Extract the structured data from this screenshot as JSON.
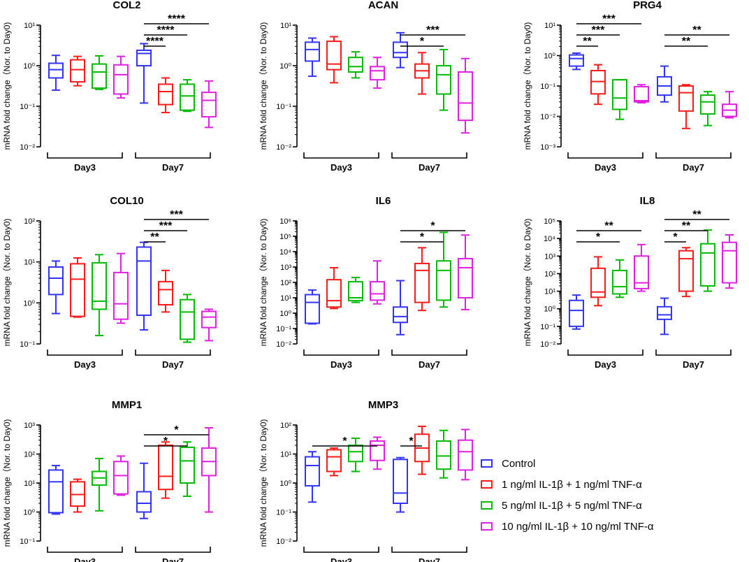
{
  "figure": {
    "legend": [
      {
        "label": "Control",
        "color": "#3333ff"
      },
      {
        "label": "1 ng/ml IL-1β + 1 ng/ml TNF-α",
        "color": "#ff1a1a"
      },
      {
        "label": "5 ng/ml IL-1β + 5 ng/ml TNF-α",
        "color": "#00bb00"
      },
      {
        "label": "10 ng/ml IL-1β + 10 ng/ml TNF-α",
        "color": "#e020e0"
      }
    ]
  },
  "chart_data": [
    {
      "type": "box",
      "title": "COL2",
      "ylabel": "mRNA fold change（Nor. to Day0)",
      "yscale": "log",
      "ylim_exp": [
        -2,
        1
      ],
      "groups": [
        "Day3",
        "Day7"
      ],
      "series": [
        "Control",
        "1 ng/ml IL-1β + 1 ng/ml TNF-α",
        "5 ng/ml IL-1β + 5 ng/ml TNF-α",
        "10 ng/ml IL-1β + 10 ng/ml TNF-α"
      ],
      "boxes": [
        [
          [
            0.25,
            0.5,
            0.8,
            1.15,
            1.8
          ],
          [
            0.32,
            0.4,
            0.8,
            1.4,
            1.7
          ],
          [
            0.26,
            0.28,
            0.7,
            1.1,
            1.75
          ],
          [
            0.16,
            0.2,
            0.6,
            1.05,
            1.7
          ]
        ],
        [
          [
            0.12,
            1.0,
            2.0,
            2.4,
            3.5
          ],
          [
            0.07,
            0.11,
            0.23,
            0.35,
            0.5
          ],
          [
            0.075,
            0.08,
            0.18,
            0.35,
            0.45
          ],
          [
            0.03,
            0.055,
            0.14,
            0.22,
            0.42
          ]
        ]
      ],
      "sig": [
        {
          "from": [
            1,
            0
          ],
          "to": [
            1,
            1
          ],
          "label": "****"
        },
        {
          "from": [
            1,
            0
          ],
          "to": [
            1,
            2
          ],
          "label": "****"
        },
        {
          "from": [
            1,
            0
          ],
          "to": [
            1,
            3
          ],
          "label": "****"
        }
      ]
    },
    {
      "type": "box",
      "title": "ACAN",
      "ylabel": "mRNA fold change（Nor. to Day0)",
      "yscale": "log",
      "ylim_exp": [
        -2,
        1
      ],
      "groups": [
        "Day3",
        "Day7"
      ],
      "series": [
        "Control",
        "1 ng/ml IL-1β + 1 ng/ml TNF-α",
        "5 ng/ml IL-1β + 5 ng/ml TNF-α",
        "10 ng/ml IL-1β + 10 ng/ml TNF-α"
      ],
      "boxes": [
        [
          [
            0.55,
            1.3,
            2.5,
            3.8,
            4.8
          ],
          [
            0.38,
            0.8,
            1.1,
            4.0,
            5.2
          ],
          [
            0.5,
            0.7,
            0.95,
            1.6,
            2.2
          ],
          [
            0.28,
            0.45,
            0.75,
            0.95,
            1.6
          ]
        ],
        [
          [
            0.9,
            1.6,
            2.1,
            3.8,
            6.5
          ],
          [
            0.2,
            0.5,
            0.75,
            1.1,
            2.1
          ],
          [
            0.08,
            0.2,
            0.6,
            1.0,
            2.5
          ],
          [
            0.022,
            0.045,
            0.12,
            0.7,
            1.5
          ]
        ]
      ],
      "sig": [
        {
          "from": [
            1,
            0
          ],
          "to": [
            1,
            2
          ],
          "label": "*"
        },
        {
          "from": [
            1,
            0
          ],
          "to": [
            1,
            3
          ],
          "label": "***"
        }
      ]
    },
    {
      "type": "box",
      "title": "PRG4",
      "ylabel": "mRNA fold change（Nor. to Day0)",
      "yscale": "log",
      "ylim_exp": [
        -3,
        1
      ],
      "groups": [
        "Day3",
        "Day7"
      ],
      "series": [
        "Control",
        "1 ng/ml IL-1β + 1 ng/ml TNF-α",
        "5 ng/ml IL-1β + 5 ng/ml TNF-α",
        "10 ng/ml IL-1β + 10 ng/ml TNF-α"
      ],
      "boxes": [
        [
          [
            0.35,
            0.45,
            0.8,
            1.05,
            1.2
          ],
          [
            0.025,
            0.055,
            0.14,
            0.32,
            0.5
          ],
          [
            0.008,
            0.017,
            0.04,
            0.16,
            0.16
          ],
          [
            0.028,
            0.03,
            0.033,
            0.095,
            0.11
          ]
        ],
        [
          [
            0.03,
            0.05,
            0.1,
            0.2,
            0.45
          ],
          [
            0.004,
            0.015,
            0.06,
            0.1,
            0.11
          ],
          [
            0.005,
            0.012,
            0.03,
            0.05,
            0.065
          ],
          [
            0.009,
            0.01,
            0.016,
            0.025,
            0.065
          ]
        ]
      ],
      "sig": [
        {
          "from": [
            0,
            0
          ],
          "to": [
            0,
            1
          ],
          "label": "**"
        },
        {
          "from": [
            0,
            0
          ],
          "to": [
            0,
            2
          ],
          "label": "***"
        },
        {
          "from": [
            0,
            0
          ],
          "to": [
            0,
            3
          ],
          "label": "***"
        },
        {
          "from": [
            1,
            0
          ],
          "to": [
            1,
            2
          ],
          "label": "**"
        },
        {
          "from": [
            1,
            0
          ],
          "to": [
            1,
            3
          ],
          "label": "**"
        }
      ]
    },
    {
      "type": "box",
      "title": "COL10",
      "ylabel": "mRNA fold change（Nor. to Day0)",
      "yscale": "log",
      "ylim_exp": [
        -1,
        2
      ],
      "groups": [
        "Day3",
        "Day7"
      ],
      "series": [
        "Control",
        "1 ng/ml IL-1β + 1 ng/ml TNF-α",
        "5 ng/ml IL-1β + 5 ng/ml TNF-α",
        "10 ng/ml IL-1β + 10 ng/ml TNF-α"
      ],
      "boxes": [
        [
          [
            0.55,
            1.6,
            4.0,
            7.5,
            10.5
          ],
          [
            0.45,
            0.47,
            3.8,
            9.0,
            12.5
          ],
          [
            0.16,
            0.7,
            1.1,
            9.5,
            15.0
          ],
          [
            0.32,
            0.4,
            0.95,
            5.5,
            16.0
          ]
        ],
        [
          [
            0.22,
            0.5,
            10.5,
            23.0,
            30.0
          ],
          [
            0.6,
            0.9,
            2.1,
            3.3,
            6.2
          ],
          [
            0.11,
            0.13,
            0.6,
            1.2,
            1.6
          ],
          [
            0.12,
            0.25,
            0.45,
            0.62,
            0.7
          ]
        ]
      ],
      "sig": [
        {
          "from": [
            1,
            0
          ],
          "to": [
            1,
            1
          ],
          "label": "**"
        },
        {
          "from": [
            1,
            0
          ],
          "to": [
            1,
            2
          ],
          "label": "***"
        },
        {
          "from": [
            1,
            0
          ],
          "to": [
            1,
            3
          ],
          "label": "***"
        }
      ]
    },
    {
      "type": "box",
      "title": "IL6",
      "ylabel": "mRNA fold change（Nor. to Day0)",
      "yscale": "log",
      "ylim_exp": [
        -2,
        6
      ],
      "groups": [
        "Day3",
        "Day7"
      ],
      "series": [
        "Control",
        "1 ng/ml IL-1β + 1 ng/ml TNF-α",
        "5 ng/ml IL-1β + 5 ng/ml TNF-α",
        "10 ng/ml IL-1β + 10 ng/ml TNF-α"
      ],
      "boxes": [
        [
          [
            0.2,
            0.22,
            5.0,
            16.0,
            32.0
          ],
          [
            2.0,
            2.5,
            6.5,
            150.0,
            900.0
          ],
          [
            5.0,
            6.5,
            10.0,
            110.0,
            210.0
          ],
          [
            4.0,
            7.0,
            18.0,
            110.0,
            2500.0
          ]
        ],
        [
          [
            0.04,
            0.25,
            0.6,
            2.5,
            130.0
          ],
          [
            1.5,
            5.0,
            600.0,
            1700.0,
            18000.0
          ],
          [
            2.5,
            7.0,
            600.0,
            2500.0,
            180000.0
          ],
          [
            1.7,
            10.0,
            900.0,
            3500.0,
            120000.0
          ]
        ]
      ],
      "sig": [
        {
          "from": [
            1,
            0
          ],
          "to": [
            1,
            2
          ],
          "label": "*"
        },
        {
          "from": [
            1,
            0
          ],
          "to": [
            1,
            3
          ],
          "label": "*"
        }
      ]
    },
    {
      "type": "box",
      "title": "IL8",
      "ylabel": "mRNA fold change（Nor. to Day0)",
      "yscale": "log",
      "ylim_exp": [
        -2,
        5
      ],
      "groups": [
        "Day3",
        "Day7"
      ],
      "series": [
        "Control",
        "1 ng/ml IL-1β + 1 ng/ml TNF-α",
        "5 ng/ml IL-1β + 5 ng/ml TNF-α",
        "10 ng/ml IL-1β + 10 ng/ml TNF-α"
      ],
      "boxes": [
        [
          [
            0.07,
            0.1,
            0.8,
            3.0,
            6.0
          ],
          [
            1.5,
            4.5,
            9.0,
            200.0,
            900.0
          ],
          [
            4.5,
            7.0,
            18.0,
            150.0,
            600.0
          ],
          [
            10.0,
            14.0,
            30.0,
            1000.0,
            4500.0
          ]
        ],
        [
          [
            0.035,
            0.25,
            0.45,
            1.3,
            4.0
          ],
          [
            5.0,
            10.0,
            700.0,
            2000.0,
            3000.0
          ],
          [
            10.0,
            20.0,
            1500.0,
            5000.0,
            30000.0
          ],
          [
            15.0,
            30.0,
            2000.0,
            6000.0,
            16000.0
          ]
        ]
      ],
      "sig": [
        {
          "from": [
            0,
            0
          ],
          "to": [
            0,
            2
          ],
          "label": "*"
        },
        {
          "from": [
            0,
            0
          ],
          "to": [
            0,
            3
          ],
          "label": "**"
        },
        {
          "from": [
            1,
            0
          ],
          "to": [
            1,
            1
          ],
          "label": "*"
        },
        {
          "from": [
            1,
            0
          ],
          "to": [
            1,
            2
          ],
          "label": "**"
        },
        {
          "from": [
            1,
            0
          ],
          "to": [
            1,
            3
          ],
          "label": "**"
        }
      ]
    },
    {
      "type": "box",
      "title": "MMP1",
      "ylabel": "mRNA fold change（Nor. to Day0)",
      "yscale": "log",
      "ylim_exp": [
        -1,
        3
      ],
      "groups": [
        "Day3",
        "Day7"
      ],
      "series": [
        "Control",
        "1 ng/ml IL-1β + 1 ng/ml TNF-α",
        "5 ng/ml IL-1β + 5 ng/ml TNF-α",
        "10 ng/ml IL-1β + 10 ng/ml TNF-α"
      ],
      "boxes": [
        [
          [
            0.85,
            0.95,
            11.0,
            28.0,
            40.0
          ],
          [
            1.0,
            1.6,
            4.0,
            11.0,
            13.5
          ],
          [
            1.1,
            8.5,
            15.0,
            25.0,
            70.0
          ],
          [
            3.8,
            4.2,
            18.0,
            55.0,
            85.0
          ]
        ],
        [
          [
            0.6,
            1.0,
            2.0,
            5.0,
            48.0
          ],
          [
            3.0,
            6.0,
            17.0,
            200.0,
            260.0
          ],
          [
            3.5,
            10.0,
            58.0,
            170.0,
            260.0
          ],
          [
            1.0,
            18.0,
            55.0,
            160.0,
            800.0
          ]
        ]
      ],
      "sig": [
        {
          "from": [
            1,
            0
          ],
          "to": [
            1,
            2
          ],
          "label": "*"
        },
        {
          "from": [
            1,
            0
          ],
          "to": [
            1,
            3
          ],
          "label": "*"
        }
      ]
    },
    {
      "type": "box",
      "title": "MMP3",
      "ylabel": "mRNA fold change（Nor. to Day0)",
      "yscale": "log",
      "ylim_exp": [
        -2,
        2
      ],
      "groups": [
        "Day3",
        "Day7"
      ],
      "series": [
        "Control",
        "1 ng/ml IL-1β + 1 ng/ml TNF-α",
        "5 ng/ml IL-1β + 5 ng/ml TNF-α",
        "10 ng/ml IL-1β + 10 ng/ml TNF-α"
      ],
      "boxes": [
        [
          [
            0.22,
            0.8,
            4.0,
            8.0,
            12.0
          ],
          [
            1.8,
            2.5,
            8.0,
            14.0,
            16.0
          ],
          [
            2.5,
            5.5,
            12.0,
            20.0,
            35.0
          ],
          [
            3.0,
            6.0,
            20.0,
            28.0,
            38.0
          ]
        ],
        [
          [
            0.1,
            0.2,
            0.45,
            6.5,
            7.5
          ],
          [
            2.0,
            5.5,
            16.0,
            48.0,
            90.0
          ],
          [
            1.5,
            3.0,
            8.5,
            28.0,
            65.0
          ],
          [
            1.3,
            2.8,
            12.0,
            30.0,
            70.0
          ]
        ]
      ],
      "sig": [
        {
          "from": [
            0,
            0
          ],
          "to": [
            0,
            3
          ],
          "label": "*"
        },
        {
          "from": [
            1,
            0
          ],
          "to": [
            1,
            1
          ],
          "label": "*"
        }
      ]
    }
  ]
}
